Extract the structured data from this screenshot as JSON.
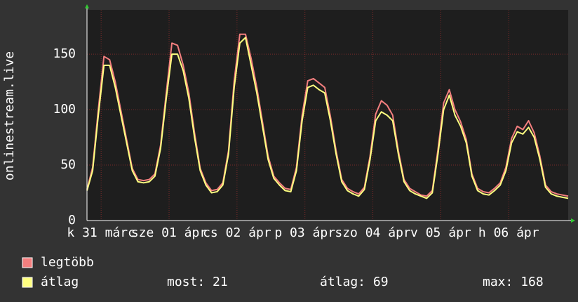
{
  "chart_data": {
    "type": "line",
    "y_label": "onlinestream.live",
    "xlim": [
      0,
      170
    ],
    "xticks": [
      {
        "value": 5,
        "label": "k 31 márc"
      },
      {
        "value": 29,
        "label": "sze 01 ápr"
      },
      {
        "value": 53,
        "label": "cs 02 ápr"
      },
      {
        "value": 77,
        "label": "p 03 ápr"
      },
      {
        "value": 101,
        "label": "szo 04 ápr"
      },
      {
        "value": 125,
        "label": "v 05 ápr"
      },
      {
        "value": 149,
        "label": "h 06 ápr"
      }
    ],
    "ylim": [
      0,
      190
    ],
    "yticks": [
      0,
      50,
      100,
      150
    ],
    "grid": true,
    "x": [
      0,
      2,
      4,
      6,
      8,
      10,
      12,
      14,
      16,
      18,
      20,
      22,
      24,
      26,
      28,
      30,
      32,
      34,
      36,
      38,
      40,
      42,
      44,
      46,
      48,
      50,
      52,
      54,
      56,
      58,
      60,
      62,
      64,
      66,
      68,
      70,
      72,
      74,
      76,
      78,
      80,
      82,
      84,
      86,
      88,
      90,
      92,
      94,
      96,
      98,
      100,
      102,
      104,
      106,
      108,
      110,
      112,
      114,
      116,
      118,
      120,
      122,
      124,
      126,
      128,
      130,
      132,
      134,
      136,
      138,
      140,
      142,
      144,
      146,
      148,
      150,
      152,
      154,
      156,
      158,
      160,
      162,
      164,
      166,
      168,
      170
    ],
    "series": [
      {
        "name": "legtöbb",
        "color": "#f47f7f",
        "values": [
          28,
          48,
          100,
          148,
          145,
          125,
          99,
          73,
          47,
          37,
          36,
          37,
          42,
          68,
          115,
          160,
          158,
          140,
          115,
          79,
          47,
          34,
          27,
          28,
          34,
          63,
          126,
          168,
          168,
          146,
          120,
          89,
          58,
          40,
          34,
          29,
          28,
          48,
          95,
          126,
          128,
          124,
          120,
          94,
          63,
          37,
          29,
          26,
          24,
          30,
          58,
          96,
          108,
          104,
          95,
          63,
          37,
          29,
          26,
          23,
          22,
          27,
          64,
          106,
          118,
          100,
          89,
          73,
          42,
          29,
          26,
          25,
          29,
          34,
          48,
          74,
          85,
          82,
          90,
          79,
          58,
          32,
          26,
          24,
          23,
          22
        ]
      },
      {
        "name": "átlag",
        "color": "#ffff80",
        "values": [
          27,
          45,
          95,
          140,
          140,
          120,
          95,
          70,
          45,
          35,
          34,
          35,
          40,
          65,
          110,
          150,
          150,
          135,
          110,
          75,
          45,
          32,
          25,
          26,
          32,
          60,
          120,
          160,
          165,
          140,
          115,
          85,
          55,
          38,
          32,
          27,
          26,
          45,
          90,
          120,
          122,
          118,
          115,
          90,
          60,
          35,
          27,
          24,
          22,
          28,
          55,
          90,
          98,
          95,
          90,
          60,
          35,
          27,
          24,
          22,
          20,
          25,
          60,
          100,
          113,
          95,
          85,
          70,
          40,
          27,
          24,
          23,
          27,
          32,
          45,
          70,
          80,
          78,
          84,
          75,
          55,
          30,
          24,
          22,
          21,
          20
        ]
      }
    ],
    "stats": [
      {
        "label": "most:",
        "value": 21
      },
      {
        "label": "átlag:",
        "value": 69
      },
      {
        "label": "max:",
        "value": 168
      }
    ]
  }
}
